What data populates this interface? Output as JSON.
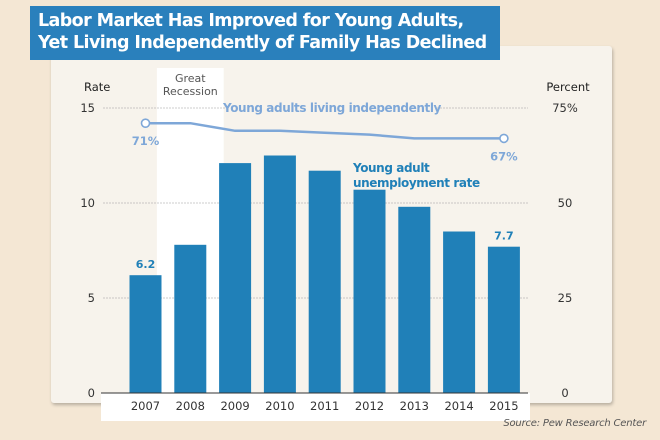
{
  "header": {
    "title_line1": "Labor Market Has Improved for Young Adults,",
    "title_line2": "Yet Living Independently of Family Has Declined"
  },
  "source": "Source: Pew Research Center",
  "colors": {
    "bar": "#2080b8",
    "line": "#7ea7d8",
    "title_bg": "#2a80bc",
    "recession_band": "#ffffff",
    "background": "#f4e7d4",
    "panel": "#f7f3ec"
  },
  "chart_data": {
    "type": "bar",
    "title": "Labor Market Has Improved for Young Adults, Yet Living Independently of Family Has Declined",
    "categories": [
      "2007",
      "2008",
      "2009",
      "2010",
      "2011",
      "2012",
      "2013",
      "2014",
      "2015"
    ],
    "series": [
      {
        "name": "Young adult unemployment rate",
        "type": "bar",
        "axis": "left",
        "values": [
          6.2,
          7.8,
          12.1,
          12.5,
          11.7,
          10.7,
          9.8,
          8.5,
          7.7
        ],
        "labels": {
          "0": "6.2",
          "8": "7.7"
        }
      },
      {
        "name": "Young adults living independently",
        "type": "line",
        "axis": "right",
        "values": [
          71,
          71,
          69,
          69,
          68.5,
          68,
          67,
          67,
          67
        ],
        "labels": {
          "0": "71%",
          "8": "67%"
        }
      }
    ],
    "left_axis": {
      "label": "Rate",
      "ylim": [
        0,
        15
      ],
      "ticks": [
        "0",
        "5",
        "10",
        "15"
      ]
    },
    "right_axis": {
      "label": "Percent",
      "ylim": [
        0,
        75
      ],
      "ticks": [
        "0",
        "25",
        "50",
        "75%"
      ]
    },
    "annotations": [
      {
        "text_line1": "Great",
        "text_line2": "Recession",
        "span": [
          "2008",
          "2009"
        ]
      }
    ],
    "grid": true,
    "legend": "inline labels"
  }
}
